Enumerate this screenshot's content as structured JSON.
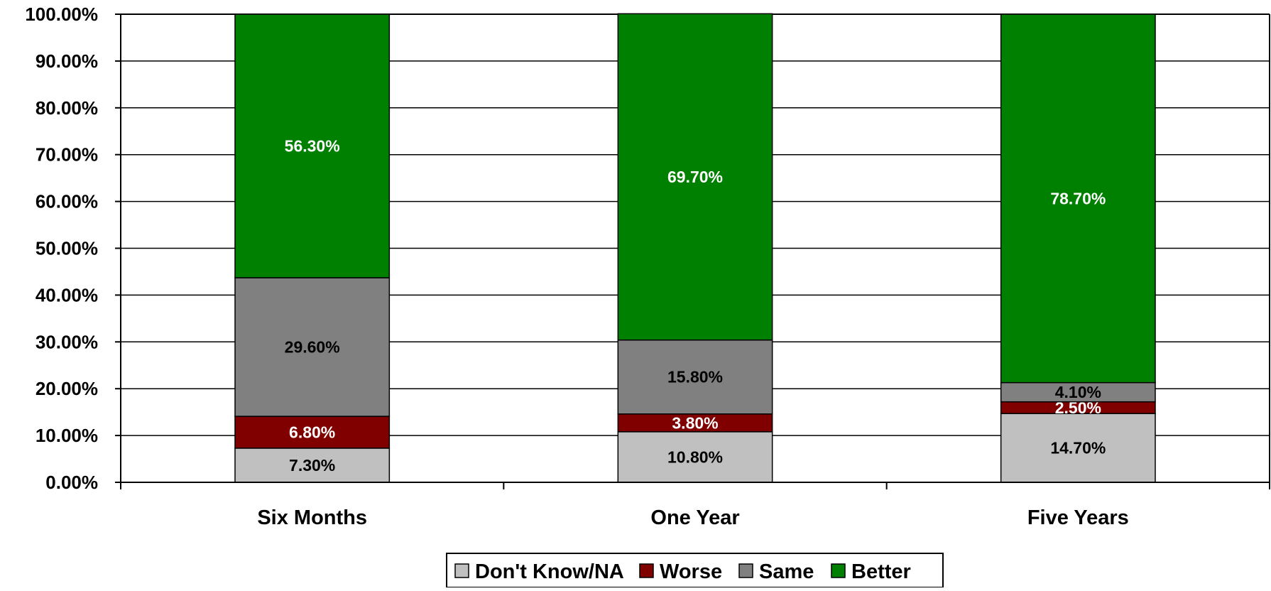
{
  "chart_data": {
    "type": "bar",
    "stacked": true,
    "categories": [
      "Six Months",
      "One Year",
      "Five Years"
    ],
    "series": [
      {
        "name": "Don't Know/NA",
        "values": [
          7.3,
          10.8,
          14.7
        ],
        "labels": [
          "7.30%",
          "10.80%",
          "14.70%"
        ],
        "color": "#C0C0C0",
        "label_color": "#000000"
      },
      {
        "name": "Worse",
        "values": [
          6.8,
          3.8,
          2.5
        ],
        "labels": [
          "6.80%",
          "3.80%",
          "2.50%"
        ],
        "color": "#800000",
        "label_color": "#ffffff"
      },
      {
        "name": "Same",
        "values": [
          29.6,
          15.8,
          4.1
        ],
        "labels": [
          "29.60%",
          "15.80%",
          "4.10%"
        ],
        "color": "#808080",
        "label_color": "#000000"
      },
      {
        "name": "Better",
        "values": [
          56.3,
          69.7,
          78.7
        ],
        "labels": [
          "56.30%",
          "69.70%",
          "78.70%"
        ],
        "color": "#008000",
        "label_color": "#ffffff"
      }
    ],
    "y_ticks": [
      "0.00%",
      "10.00%",
      "20.00%",
      "30.00%",
      "40.00%",
      "50.00%",
      "60.00%",
      "70.00%",
      "80.00%",
      "90.00%",
      "100.00%"
    ],
    "ylim": [
      0,
      100
    ],
    "grid": true,
    "legend": "bottom"
  }
}
